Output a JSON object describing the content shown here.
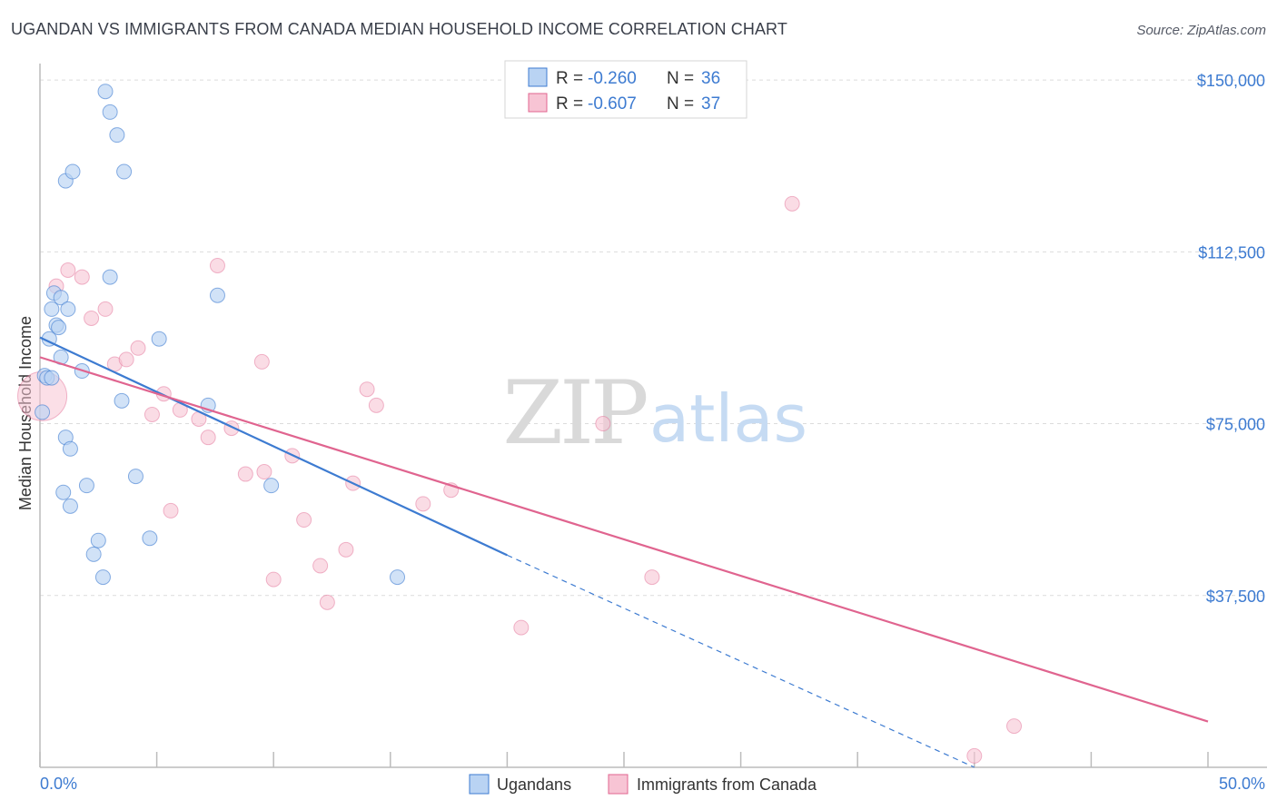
{
  "header": {
    "title": "UGANDAN VS IMMIGRANTS FROM CANADA MEDIAN HOUSEHOLD INCOME CORRELATION CHART",
    "source": "Source: ZipAtlas.com"
  },
  "watermark": {
    "zip": "ZIP",
    "atlas": "atlas"
  },
  "colors": {
    "blue": "#3d7bd1",
    "blue_fill": "#b9d3f3",
    "pink": "#e0648f",
    "pink_fill": "#f7c4d4",
    "grid": "#dcdcdc"
  },
  "chart_data": {
    "type": "scatter",
    "title": "UGANDAN VS IMMIGRANTS FROM CANADA MEDIAN HOUSEHOLD INCOME CORRELATION CHART",
    "xlabel": "",
    "ylabel": "Median Household Income",
    "xlim": [
      0,
      50
    ],
    "ylim": [
      0,
      152000
    ],
    "x_tick_labels": [
      "0.0%",
      "50.0%"
    ],
    "y_ticks": [
      37500,
      75000,
      112500,
      150000
    ],
    "y_tick_labels": [
      "$37,500",
      "$75,000",
      "$112,500",
      "$150,000"
    ],
    "legend_stats": [
      {
        "r_label": "R =",
        "r_value": "-0.260",
        "n_label": "N =",
        "n_value": "36"
      },
      {
        "r_label": "R =",
        "r_value": "-0.607",
        "n_label": "N =",
        "n_value": "37"
      }
    ],
    "series": [
      {
        "name": "Ugandans",
        "points": [
          [
            0.1,
            77500
          ],
          [
            0.2,
            85500
          ],
          [
            0.3,
            85000
          ],
          [
            0.4,
            93500
          ],
          [
            0.5,
            85000
          ],
          [
            0.5,
            100000
          ],
          [
            0.6,
            103500
          ],
          [
            0.7,
            96500
          ],
          [
            0.8,
            96000
          ],
          [
            0.9,
            102500
          ],
          [
            0.9,
            89500
          ],
          [
            1.0,
            60000
          ],
          [
            1.1,
            128000
          ],
          [
            1.1,
            72000
          ],
          [
            1.2,
            100000
          ],
          [
            1.3,
            69500
          ],
          [
            1.3,
            57000
          ],
          [
            1.4,
            130000
          ],
          [
            1.8,
            86500
          ],
          [
            2.0,
            61500
          ],
          [
            2.3,
            46500
          ],
          [
            2.5,
            49500
          ],
          [
            2.7,
            41500
          ],
          [
            2.8,
            147500
          ],
          [
            3.0,
            107000
          ],
          [
            3.0,
            143000
          ],
          [
            3.3,
            138000
          ],
          [
            3.5,
            80000
          ],
          [
            3.6,
            130000
          ],
          [
            4.1,
            63500
          ],
          [
            4.7,
            50000
          ],
          [
            5.1,
            93500
          ],
          [
            7.2,
            79000
          ],
          [
            7.6,
            103000
          ],
          [
            9.9,
            61500
          ],
          [
            15.3,
            41500
          ]
        ],
        "trend": {
          "x_start": 0,
          "y_start": 93800,
          "x_solid_end": 20,
          "y_solid_end": 46300,
          "x_end": 40,
          "y_end": 0
        }
      },
      {
        "name": "Immigrants from Canada",
        "points": [
          [
            0.1,
            81000
          ],
          [
            0.7,
            105000
          ],
          [
            1.2,
            108500
          ],
          [
            1.8,
            107000
          ],
          [
            2.2,
            98000
          ],
          [
            2.8,
            100000
          ],
          [
            3.2,
            88000
          ],
          [
            3.7,
            89000
          ],
          [
            4.2,
            91500
          ],
          [
            4.8,
            77000
          ],
          [
            5.3,
            81500
          ],
          [
            5.6,
            56000
          ],
          [
            6.0,
            78000
          ],
          [
            6.8,
            76000
          ],
          [
            7.2,
            72000
          ],
          [
            7.6,
            109500
          ],
          [
            8.2,
            74000
          ],
          [
            8.8,
            64000
          ],
          [
            9.5,
            88500
          ],
          [
            9.6,
            64500
          ],
          [
            10.0,
            41000
          ],
          [
            10.8,
            68000
          ],
          [
            11.3,
            54000
          ],
          [
            12.0,
            44000
          ],
          [
            12.3,
            36000
          ],
          [
            13.1,
            47500
          ],
          [
            13.4,
            62000
          ],
          [
            14.0,
            82500
          ],
          [
            14.4,
            79000
          ],
          [
            16.4,
            57500
          ],
          [
            17.6,
            60500
          ],
          [
            20.6,
            30500
          ],
          [
            24.1,
            75000
          ],
          [
            26.2,
            41500
          ],
          [
            32.2,
            123000
          ],
          [
            40.0,
            2500
          ],
          [
            41.7,
            9000
          ]
        ],
        "trend": {
          "x_start": 0,
          "y_start": 89500,
          "x_end": 50,
          "y_end": 10000
        }
      }
    ]
  }
}
